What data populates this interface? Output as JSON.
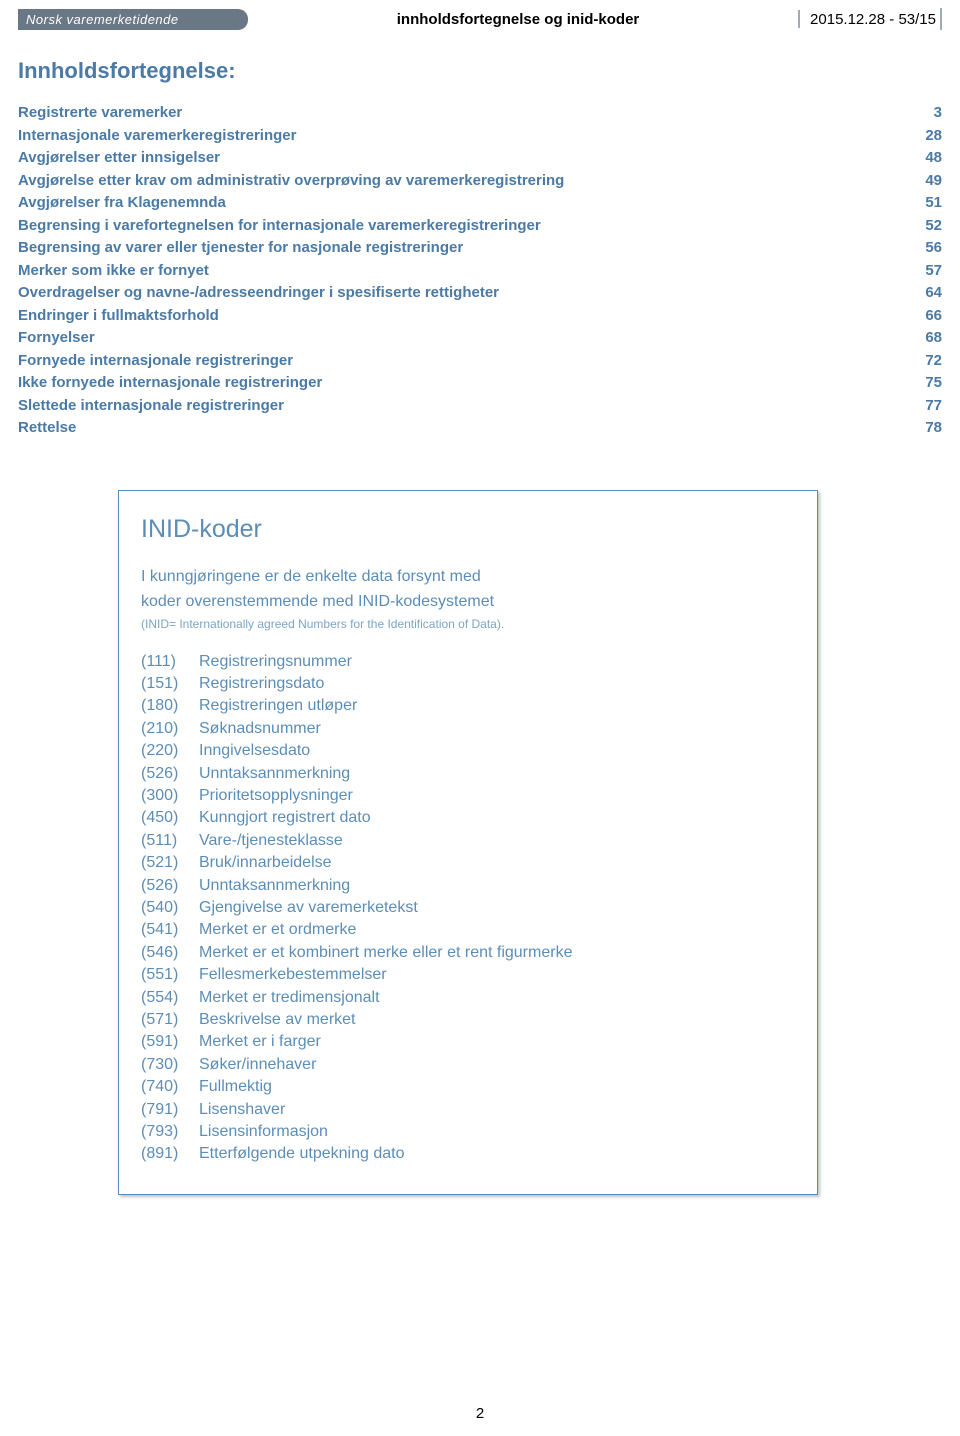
{
  "header": {
    "logo_text": "Norsk varemerketidende",
    "center_title": "innholdsfortegnelse og inid-koder",
    "right_text": "2015.12.28 - 53/15"
  },
  "main_title": "Innholdsfortegnelse:",
  "toc": [
    {
      "label": "Registrerte varemerker",
      "page": "3"
    },
    {
      "label": "Internasjonale varemerkeregistreringer",
      "page": "28"
    },
    {
      "label": "Avgjørelser etter innsigelser",
      "page": "48"
    },
    {
      "label": "Avgjørelse etter krav om administrativ overprøving av varemerkeregistrering",
      "page": "49"
    },
    {
      "label": "Avgjørelser fra Klagenemnda",
      "page": "51"
    },
    {
      "label": "Begrensing i varefortegnelsen for internasjonale varemerkeregistreringer",
      "page": "52"
    },
    {
      "label": "Begrensing av varer eller tjenester for nasjonale registreringer",
      "page": "56"
    },
    {
      "label": "Merker som ikke er fornyet",
      "page": "57"
    },
    {
      "label": "Overdragelser og navne-/adresseendringer i spesifiserte rettigheter",
      "page": "64"
    },
    {
      "label": "Endringer i fullmaktsforhold",
      "page": "66"
    },
    {
      "label": "Fornyelser",
      "page": "68"
    },
    {
      "label": "Fornyede internasjonale registreringer",
      "page": "72"
    },
    {
      "label": "Ikke fornyede internasjonale registreringer",
      "page": "75"
    },
    {
      "label": "Slettede internasjonale registreringer",
      "page": "77"
    },
    {
      "label": "Rettelse",
      "page": "78"
    }
  ],
  "inid": {
    "title": "INID-koder",
    "intro_line1": "I kunngjøringene er de enkelte data forsynt med",
    "intro_line2": "koder overenstemmende med INID-kodesystemet",
    "sub": "(INID= Internationally agreed Numbers for the Identification of Data).",
    "codes": [
      {
        "num": "(111)",
        "desc": "Registreringsnummer"
      },
      {
        "num": "(151)",
        "desc": "Registreringsdato"
      },
      {
        "num": "(180)",
        "desc": "Registreringen utløper"
      },
      {
        "num": "(210)",
        "desc": "Søknadsnummer"
      },
      {
        "num": "(220)",
        "desc": "Inngivelsesdato"
      },
      {
        "num": "(526)",
        "desc": " Unntaksannmerkning"
      },
      {
        "num": "(300)",
        "desc": "Prioritetsopplysninger"
      },
      {
        "num": "(450)",
        "desc": "Kunngjort registrert dato"
      },
      {
        "num": "(511)",
        "desc": "Vare-/tjenesteklasse"
      },
      {
        "num": "(521)",
        "desc": "Bruk/innarbeidelse"
      },
      {
        "num": "(526)",
        "desc": "Unntaksannmerkning"
      },
      {
        "num": "(540)",
        "desc": "Gjengivelse av varemerketekst"
      },
      {
        "num": "(541)",
        "desc": "Merket er et ordmerke"
      },
      {
        "num": "(546)",
        "desc": "Merket er et kombinert merke eller et rent figurmerke"
      },
      {
        "num": "(551)",
        "desc": "Fellesmerkebestemmelser"
      },
      {
        "num": "(554)",
        "desc": "Merket er tredimensjonalt"
      },
      {
        "num": "(571)",
        "desc": "Beskrivelse av merket"
      },
      {
        "num": "(591)",
        "desc": "Merket er i farger"
      },
      {
        "num": "(730)",
        "desc": "Søker/innehaver"
      },
      {
        "num": "(740)",
        "desc": "Fullmektig"
      },
      {
        "num": "(791)",
        "desc": "Lisenshaver"
      },
      {
        "num": "(793)",
        "desc": "Lisensinformasjon"
      },
      {
        "num": "(891)",
        "desc": "Etterfølgende utpekning dato"
      }
    ]
  },
  "page_number": "2",
  "colors": {
    "toc_text": "#4a7aa5",
    "inid_text": "#5c8db7",
    "logo_bg": "#6a7886",
    "border": "#5a8ab5"
  }
}
